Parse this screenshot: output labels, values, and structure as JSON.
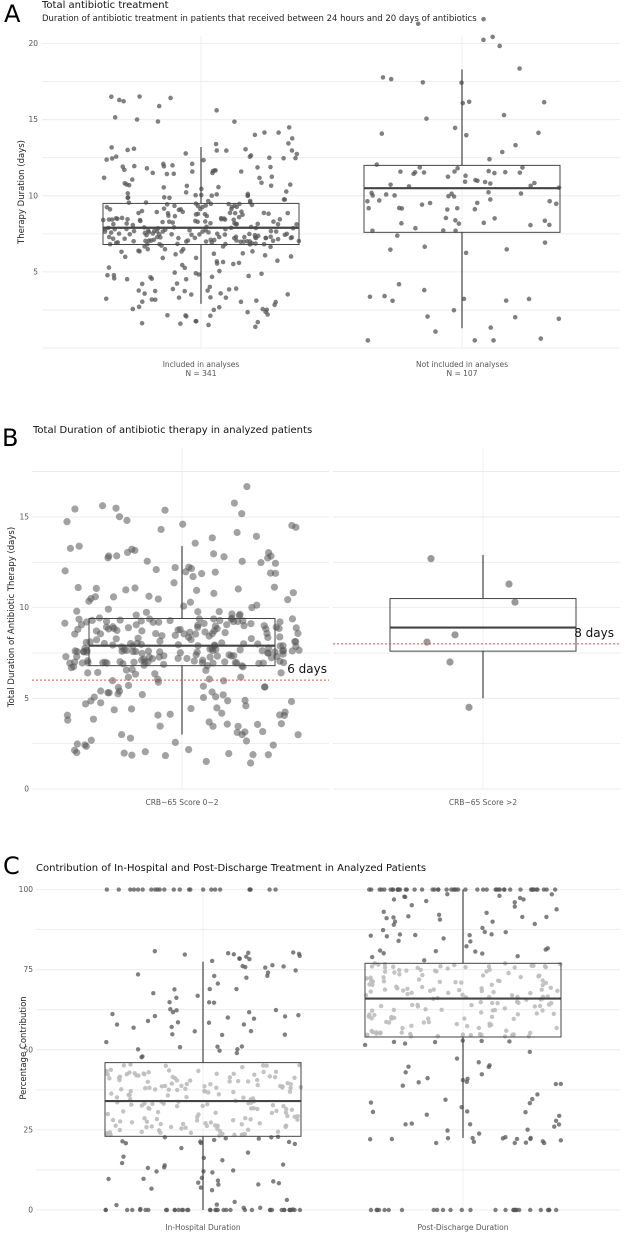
{
  "panels": {
    "A": {
      "letter": "A",
      "title": "Total antibiotic treatment",
      "subtitle": "Duration of antibiotic treatment in patients that received between 24 hours and 20 days of antibiotics"
    },
    "B": {
      "letter": "B",
      "title": "Total Duration of antibiotic therapy in analyzed patients"
    },
    "C": {
      "letter": "C",
      "title": "Contribution of In-Hospital and Post-Discharge Treatment in Analyzed Patients"
    }
  },
  "chart_data": [
    {
      "type": "box",
      "id": "A",
      "title": "Total antibiotic treatment",
      "subtitle": "Duration of antibiotic treatment in patients that received between 24 hours and 20 days of antibiotics",
      "ylabel": "Therapy Duration (days)",
      "ylim": [
        0,
        20.5
      ],
      "yticks": [
        5,
        10,
        15,
        20
      ],
      "categories": [
        "Included in analyses",
        "Not included in analyses"
      ],
      "category_notes": [
        "N = 341",
        "N = 107"
      ],
      "boxes": [
        {
          "whisker_low": 2.9,
          "q1": 6.8,
          "median": 7.9,
          "q3": 9.5,
          "whisker_high": 13.2
        },
        {
          "whisker_low": 1.3,
          "q1": 7.6,
          "median": 10.5,
          "q3": 12.0,
          "whisker_high": 18.3
        }
      ],
      "point_counts": [
        341,
        107
      ]
    },
    {
      "type": "box",
      "id": "B",
      "title": "Total Duration of antibiotic therapy in analyzed patients",
      "ylabel": "Total Duration of Antibiotic Therapy (days)",
      "ylim": [
        0,
        18.8
      ],
      "yticks": [
        0,
        5,
        10,
        15
      ],
      "categories": [
        "CRB−65 Score 0−2",
        "CRB−65 Score >2"
      ],
      "boxes": [
        {
          "whisker_low": 3.0,
          "q1": 6.8,
          "median": 7.9,
          "q3": 9.4,
          "whisker_high": 13.4
        },
        {
          "whisker_low": 5.0,
          "q1": 7.6,
          "median": 8.9,
          "q3": 10.5,
          "whisker_high": 12.9
        }
      ],
      "reference_lines": [
        {
          "category": "CRB−65 Score 0−2",
          "value": 6,
          "label": "6 days"
        },
        {
          "category": "CRB−65 Score >2",
          "value": 8,
          "label": "8 days"
        }
      ],
      "points_group2": [
        12.7,
        11.3,
        10.3,
        8.5,
        8.1,
        7.0,
        4.5
      ],
      "point_counts": [
        334,
        7
      ]
    },
    {
      "type": "box",
      "id": "C",
      "title": "Contribution of In-Hospital and Post-Discharge Treatment in Analyzed Patients",
      "ylabel": "Percentage Contribution",
      "ylim": [
        0,
        103
      ],
      "yticks": [
        0,
        25,
        50,
        75,
        100
      ],
      "categories": [
        "In-Hospital Duration",
        "Post-Discharge Duration"
      ],
      "boxes": [
        {
          "whisker_low": 0,
          "q1": 23,
          "median": 34,
          "q3": 46,
          "whisker_high": 77.5
        },
        {
          "whisker_low": 22.5,
          "q1": 54,
          "median": 66,
          "q3": 77,
          "whisker_high": 100
        }
      ],
      "point_counts": [
        341,
        341
      ]
    }
  ]
}
